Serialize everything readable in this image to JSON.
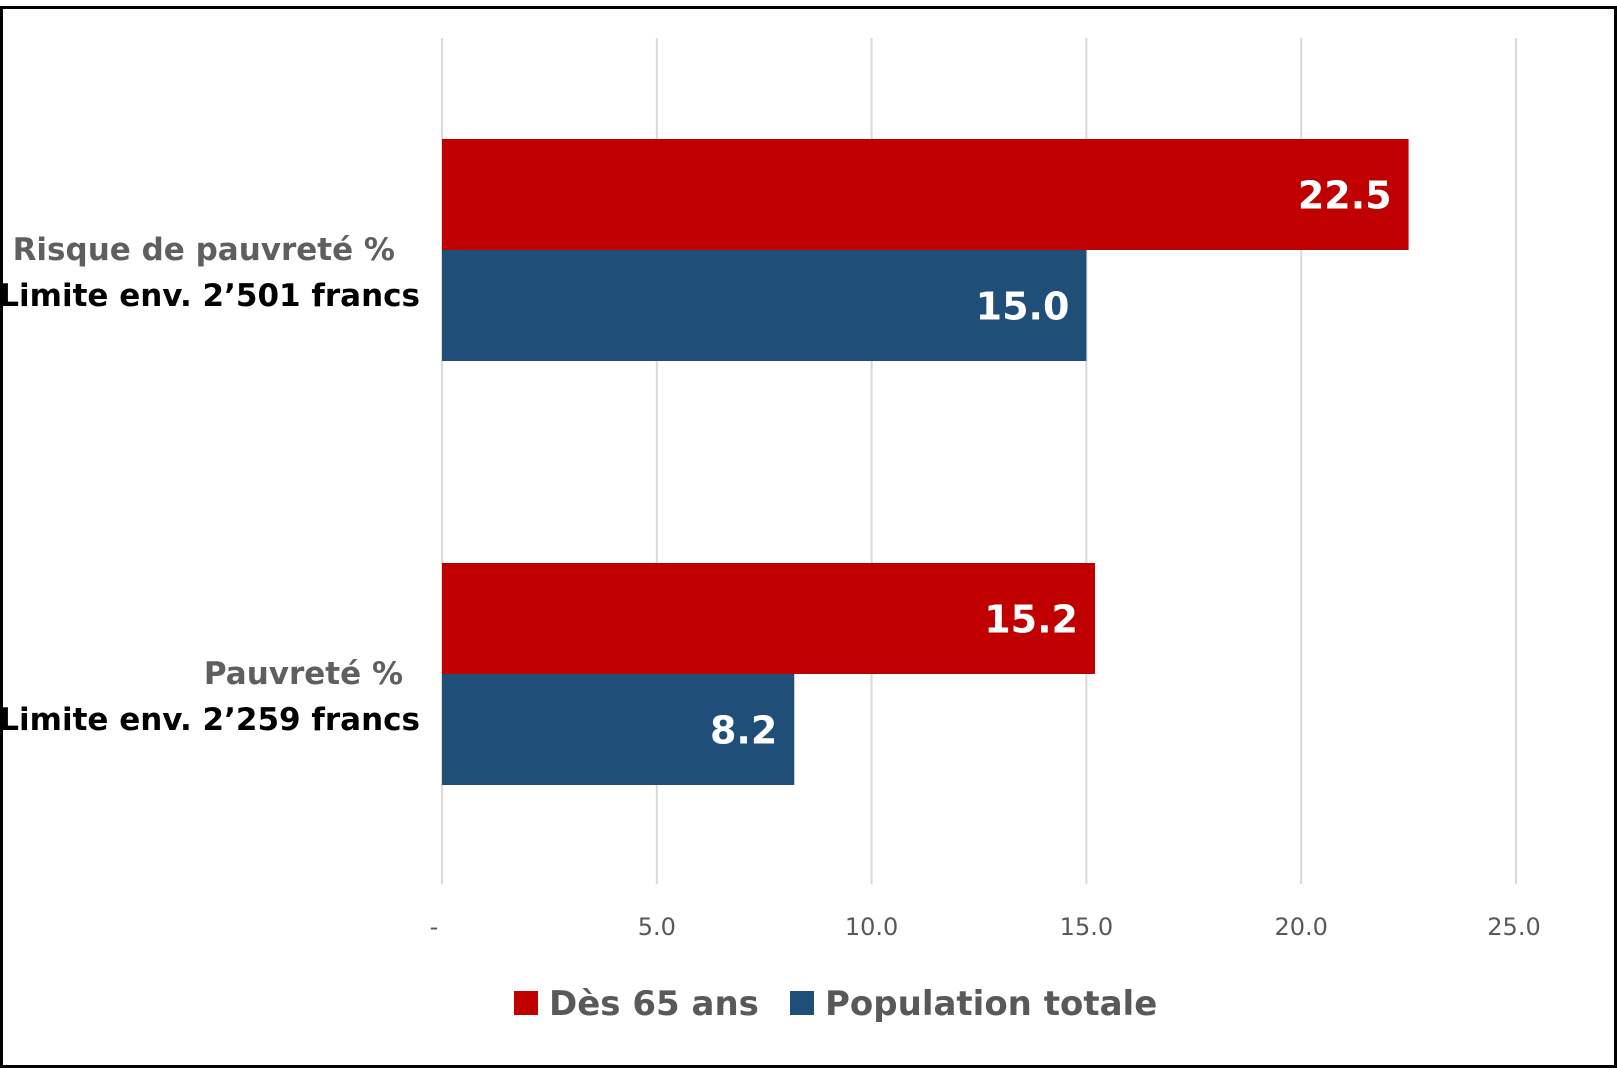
{
  "chart_data": {
    "type": "bar",
    "orientation": "horizontal",
    "categories": [
      {
        "line1": "Risque de pauvreté %",
        "line2": "Limite env. 2’501 francs"
      },
      {
        "line1": "Pauvreté %",
        "line2": "Limite env. 2’259 francs"
      }
    ],
    "series": [
      {
        "name": "Dès 65 ans",
        "color": "#c00000",
        "values": [
          22.5,
          15.2
        ],
        "labels": [
          "22.5",
          "15.2"
        ]
      },
      {
        "name": "Population totale",
        "color": "#1f4e79",
        "values": [
          15.0,
          8.2
        ],
        "labels": [
          "15.0",
          "8.2"
        ]
      }
    ],
    "xlim": [
      0,
      25
    ],
    "x_ticks": [
      {
        "value": 0,
        "label": "-"
      },
      {
        "value": 5,
        "label": "5.0"
      },
      {
        "value": 10,
        "label": "10.0"
      },
      {
        "value": 15,
        "label": "15.0"
      },
      {
        "value": 20,
        "label": "20.0"
      },
      {
        "value": 25,
        "label": "25.0"
      }
    ],
    "grid": true,
    "legend_position": "bottom",
    "title": "",
    "xlabel": "",
    "ylabel": ""
  }
}
